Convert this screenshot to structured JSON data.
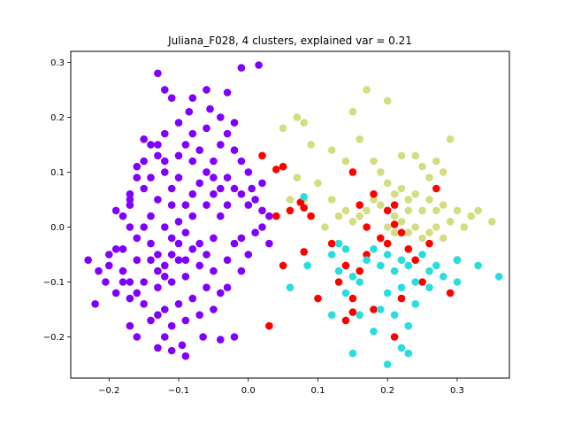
{
  "chart_data": {
    "type": "scatter",
    "title": "Juliana_F028, 4 clusters, explained var = 0.21",
    "xlabel": "",
    "ylabel": "",
    "xlim": [
      -0.255,
      0.375
    ],
    "ylim": [
      -0.275,
      0.32
    ],
    "xticks": [
      -0.2,
      -0.1,
      0.0,
      0.1,
      0.2,
      0.3
    ],
    "yticks": [
      -0.2,
      -0.1,
      0.0,
      0.1,
      0.2,
      0.3
    ],
    "xtick_labels": [
      "−0.2",
      "−0.1",
      "0.0",
      "0.1",
      "0.2",
      "0.3"
    ],
    "ytick_labels": [
      "−0.2",
      "−0.1",
      "0.0",
      "0.1",
      "0.2",
      "0.3"
    ],
    "grid": false,
    "legend": false,
    "series": [
      {
        "color": "#8000ff",
        "points": [
          [
            -0.13,
            0.28
          ],
          [
            -0.01,
            0.29
          ],
          [
            0.015,
            0.295
          ],
          [
            -0.08,
            0.235
          ],
          [
            -0.11,
            0.235
          ],
          [
            -0.06,
            0.25
          ],
          [
            -0.085,
            0.21
          ],
          [
            -0.055,
            0.215
          ],
          [
            -0.03,
            0.245
          ],
          [
            -0.12,
            0.25
          ],
          [
            -0.23,
            -0.06
          ],
          [
            -0.215,
            -0.08
          ],
          [
            -0.205,
            -0.1
          ],
          [
            -0.22,
            -0.14
          ],
          [
            -0.2,
            -0.07
          ],
          [
            -0.19,
            0.03
          ],
          [
            -0.17,
            0.05
          ],
          [
            -0.18,
            -0.04
          ],
          [
            -0.19,
            -0.12
          ],
          [
            -0.16,
            -0.12
          ],
          [
            -0.17,
            -0.18
          ],
          [
            -0.16,
            -0.2
          ],
          [
            -0.12,
            -0.2
          ],
          [
            -0.13,
            -0.22
          ],
          [
            -0.095,
            -0.215
          ],
          [
            -0.09,
            -0.235
          ],
          [
            -0.11,
            -0.225
          ],
          [
            -0.065,
            -0.2
          ],
          [
            -0.04,
            -0.205
          ],
          [
            -0.02,
            -0.2
          ],
          [
            -0.14,
            0.15
          ],
          [
            -0.15,
            0.16
          ],
          [
            -0.13,
            0.13
          ],
          [
            -0.12,
            0.1
          ],
          [
            -0.16,
            0.11
          ],
          [
            -0.14,
            0.09
          ],
          [
            -0.15,
            0.07
          ],
          [
            -0.17,
            0.06
          ],
          [
            -0.13,
            0.05
          ],
          [
            -0.11,
            0.07
          ],
          [
            -0.1,
            0.13
          ],
          [
            -0.09,
            0.15
          ],
          [
            -0.08,
            0.12
          ],
          [
            -0.07,
            0.14
          ],
          [
            -0.06,
            0.1
          ],
          [
            -0.05,
            0.12
          ],
          [
            -0.04,
            0.15
          ],
          [
            -0.03,
            0.17
          ],
          [
            -0.02,
            0.14
          ],
          [
            -0.01,
            0.12
          ],
          [
            -0.06,
            0.18
          ],
          [
            -0.08,
            0.17
          ],
          [
            -0.1,
            0.19
          ],
          [
            -0.12,
            0.17
          ],
          [
            -0.04,
            0.2
          ],
          [
            -0.02,
            0.19
          ],
          [
            0.0,
            0.1
          ],
          [
            0.005,
            0.07
          ],
          [
            0.02,
            0.08
          ],
          [
            0.01,
            0.05
          ],
          [
            -0.12,
            0.0
          ],
          [
            -0.11,
            -0.02
          ],
          [
            -0.1,
            0.01
          ],
          [
            -0.09,
            -0.01
          ],
          [
            -0.08,
            0.02
          ],
          [
            -0.07,
            -0.03
          ],
          [
            -0.13,
            -0.05
          ],
          [
            -0.14,
            -0.03
          ],
          [
            -0.12,
            -0.07
          ],
          [
            -0.1,
            -0.06
          ],
          [
            -0.09,
            -0.09
          ],
          [
            -0.11,
            -0.1
          ],
          [
            -0.13,
            -0.11
          ],
          [
            -0.15,
            -0.1
          ],
          [
            -0.08,
            -0.13
          ],
          [
            -0.1,
            -0.14
          ],
          [
            -0.12,
            -0.15
          ],
          [
            -0.06,
            -0.11
          ],
          [
            -0.05,
            -0.08
          ],
          [
            -0.04,
            -0.12
          ],
          [
            -0.03,
            -0.06
          ],
          [
            -0.02,
            -0.03
          ],
          [
            -0.01,
            -0.02
          ],
          [
            0.0,
            -0.05
          ],
          [
            -0.01,
            -0.08
          ],
          [
            -0.03,
            -0.11
          ],
          [
            -0.05,
            -0.15
          ],
          [
            -0.07,
            -0.16
          ],
          [
            -0.09,
            -0.17
          ],
          [
            -0.11,
            -0.18
          ],
          [
            -0.14,
            0.02
          ],
          [
            -0.15,
            0.0
          ],
          [
            -0.16,
            -0.02
          ],
          [
            -0.17,
            0.0
          ],
          [
            -0.18,
            -0.08
          ],
          [
            -0.17,
            -0.1
          ],
          [
            -0.16,
            -0.06
          ],
          [
            -0.15,
            -0.14
          ],
          [
            -0.14,
            -0.17
          ],
          [
            -0.13,
            -0.16
          ],
          [
            -0.06,
            0.04
          ],
          [
            -0.05,
            0.06
          ],
          [
            -0.07,
            0.08
          ],
          [
            -0.08,
            0.06
          ],
          [
            -0.09,
            0.04
          ],
          [
            -0.1,
            0.09
          ],
          [
            -0.11,
            0.04
          ],
          [
            -0.04,
            0.02
          ],
          [
            -0.03,
            0.04
          ],
          [
            -0.02,
            0.07
          ],
          [
            -0.05,
            -0.02
          ],
          [
            -0.06,
            -0.05
          ],
          [
            -0.07,
            -0.07
          ],
          [
            -0.08,
            -0.04
          ],
          [
            -0.09,
            -0.06
          ],
          [
            -0.1,
            -0.03
          ],
          [
            -0.11,
            -0.05
          ],
          [
            -0.12,
            -0.09
          ],
          [
            -0.13,
            -0.08
          ],
          [
            -0.14,
            -0.06
          ],
          [
            0.02,
            0.0
          ],
          [
            0.03,
            0.02
          ],
          [
            0.01,
            -0.01
          ],
          [
            0.02,
            0.03
          ],
          [
            0.0,
            0.04
          ],
          [
            -0.01,
            0.06
          ],
          [
            0.03,
            -0.03
          ],
          [
            -0.03,
            0.09
          ],
          [
            -0.04,
            0.07
          ],
          [
            -0.05,
            0.09
          ],
          [
            -0.12,
            0.12
          ],
          [
            -0.13,
            0.15
          ],
          [
            -0.15,
            0.12
          ],
          [
            -0.16,
            0.09
          ],
          [
            -0.17,
            0.04
          ],
          [
            -0.18,
            0.02
          ],
          [
            -0.19,
            -0.04
          ],
          [
            -0.2,
            -0.05
          ],
          [
            -0.18,
            -0.1
          ],
          [
            -0.17,
            -0.13
          ]
        ]
      },
      {
        "color": "#d4dd80",
        "points": [
          [
            0.17,
            0.25
          ],
          [
            0.2,
            0.23
          ],
          [
            0.15,
            0.21
          ],
          [
            0.07,
            0.2
          ],
          [
            0.08,
            0.19
          ],
          [
            0.05,
            0.18
          ],
          [
            0.09,
            0.15
          ],
          [
            0.12,
            0.14
          ],
          [
            0.18,
            0.12
          ],
          [
            0.22,
            0.13
          ],
          [
            0.25,
            0.11
          ],
          [
            0.27,
            0.12
          ],
          [
            0.29,
            0.16
          ],
          [
            0.19,
            0.1
          ],
          [
            0.2,
            0.08
          ],
          [
            0.21,
            0.06
          ],
          [
            0.22,
            0.07
          ],
          [
            0.23,
            0.05
          ],
          [
            0.24,
            0.06
          ],
          [
            0.26,
            0.05
          ],
          [
            0.27,
            0.03
          ],
          [
            0.28,
            0.04
          ],
          [
            0.3,
            0.03
          ],
          [
            0.29,
            0.01
          ],
          [
            0.31,
            0.0
          ],
          [
            0.32,
            0.02
          ],
          [
            0.33,
            0.03
          ],
          [
            0.35,
            0.01
          ],
          [
            0.2,
            0.0
          ],
          [
            0.21,
            0.02
          ],
          [
            0.22,
            0.01
          ],
          [
            0.23,
            -0.01
          ],
          [
            0.24,
            0.0
          ],
          [
            0.25,
            -0.02
          ],
          [
            0.26,
            -0.01
          ],
          [
            0.17,
            0.03
          ],
          [
            0.16,
            0.02
          ],
          [
            0.15,
            0.01
          ],
          [
            0.14,
            0.03
          ],
          [
            0.13,
            0.02
          ],
          [
            0.12,
            0.05
          ],
          [
            0.11,
            0.0
          ],
          [
            0.18,
            0.05
          ],
          [
            0.19,
            0.04
          ],
          [
            0.2,
            0.03
          ],
          [
            0.21,
            -0.01
          ],
          [
            0.23,
            0.03
          ],
          [
            0.25,
            0.03
          ],
          [
            0.27,
            0.0
          ],
          [
            0.28,
            -0.02
          ],
          [
            0.06,
            0.05
          ],
          [
            0.07,
            0.09
          ],
          [
            0.05,
            0.11
          ],
          [
            0.16,
            0.16
          ],
          [
            0.14,
            0.12
          ],
          [
            0.1,
            0.08
          ],
          [
            0.08,
            0.05
          ],
          [
            0.24,
            0.13
          ],
          [
            0.26,
            0.09
          ],
          [
            0.28,
            0.1
          ]
        ]
      },
      {
        "color": "#ff0000",
        "points": [
          [
            0.02,
            0.13
          ],
          [
            0.04,
            0.105
          ],
          [
            0.05,
            0.11
          ],
          [
            0.06,
            0.03
          ],
          [
            0.04,
            0.02
          ],
          [
            0.08,
            0.035
          ],
          [
            0.09,
            0.02
          ],
          [
            0.075,
            0.045
          ],
          [
            0.15,
            0.1
          ],
          [
            0.18,
            0.06
          ],
          [
            0.16,
            0.04
          ],
          [
            0.2,
            0.03
          ],
          [
            0.21,
            0.005
          ],
          [
            0.22,
            -0.01
          ],
          [
            0.19,
            -0.02
          ],
          [
            0.2,
            -0.03
          ],
          [
            0.23,
            -0.04
          ],
          [
            0.24,
            -0.06
          ],
          [
            0.17,
            -0.05
          ],
          [
            0.16,
            -0.08
          ],
          [
            0.14,
            -0.07
          ],
          [
            0.13,
            -0.1
          ],
          [
            0.15,
            -0.13
          ],
          [
            0.18,
            -0.15
          ],
          [
            0.15,
            -0.155
          ],
          [
            0.14,
            -0.17
          ],
          [
            0.21,
            -0.2
          ],
          [
            0.22,
            -0.13
          ],
          [
            0.25,
            -0.1
          ],
          [
            0.29,
            -0.12
          ],
          [
            0.27,
            0.07
          ],
          [
            0.26,
            -0.03
          ],
          [
            0.3,
            -0.06
          ],
          [
            0.05,
            -0.07
          ],
          [
            0.08,
            -0.045
          ],
          [
            0.1,
            -0.13
          ],
          [
            0.03,
            -0.18
          ],
          [
            0.12,
            -0.03
          ],
          [
            0.17,
            0.0
          ],
          [
            0.21,
            0.04
          ]
        ]
      },
      {
        "color": "#2adddd",
        "points": [
          [
            0.08,
            0.055
          ],
          [
            0.06,
            -0.11
          ],
          [
            0.085,
            -0.07
          ],
          [
            0.12,
            -0.05
          ],
          [
            0.13,
            -0.03
          ],
          [
            0.14,
            -0.04
          ],
          [
            0.13,
            -0.08
          ],
          [
            0.15,
            -0.09
          ],
          [
            0.16,
            -0.1
          ],
          [
            0.14,
            -0.12
          ],
          [
            0.12,
            -0.16
          ],
          [
            0.16,
            -0.16
          ],
          [
            0.15,
            -0.23
          ],
          [
            0.18,
            -0.19
          ],
          [
            0.2,
            -0.25
          ],
          [
            0.22,
            -0.22
          ],
          [
            0.23,
            -0.23
          ],
          [
            0.19,
            -0.15
          ],
          [
            0.21,
            -0.16
          ],
          [
            0.23,
            -0.18
          ],
          [
            0.2,
            -0.12
          ],
          [
            0.22,
            -0.11
          ],
          [
            0.24,
            -0.1
          ],
          [
            0.26,
            -0.08
          ],
          [
            0.27,
            -0.07
          ],
          [
            0.28,
            -0.09
          ],
          [
            0.3,
            -0.06
          ],
          [
            0.3,
            -0.1
          ],
          [
            0.33,
            -0.07
          ],
          [
            0.36,
            -0.09
          ],
          [
            0.19,
            -0.07
          ],
          [
            0.2,
            -0.05
          ],
          [
            0.21,
            -0.08
          ],
          [
            0.22,
            -0.06
          ],
          [
            0.23,
            -0.07
          ],
          [
            0.25,
            -0.05
          ],
          [
            0.26,
            -0.11
          ],
          [
            0.18,
            -0.04
          ],
          [
            0.17,
            -0.06
          ],
          [
            0.24,
            -0.14
          ]
        ]
      }
    ]
  }
}
